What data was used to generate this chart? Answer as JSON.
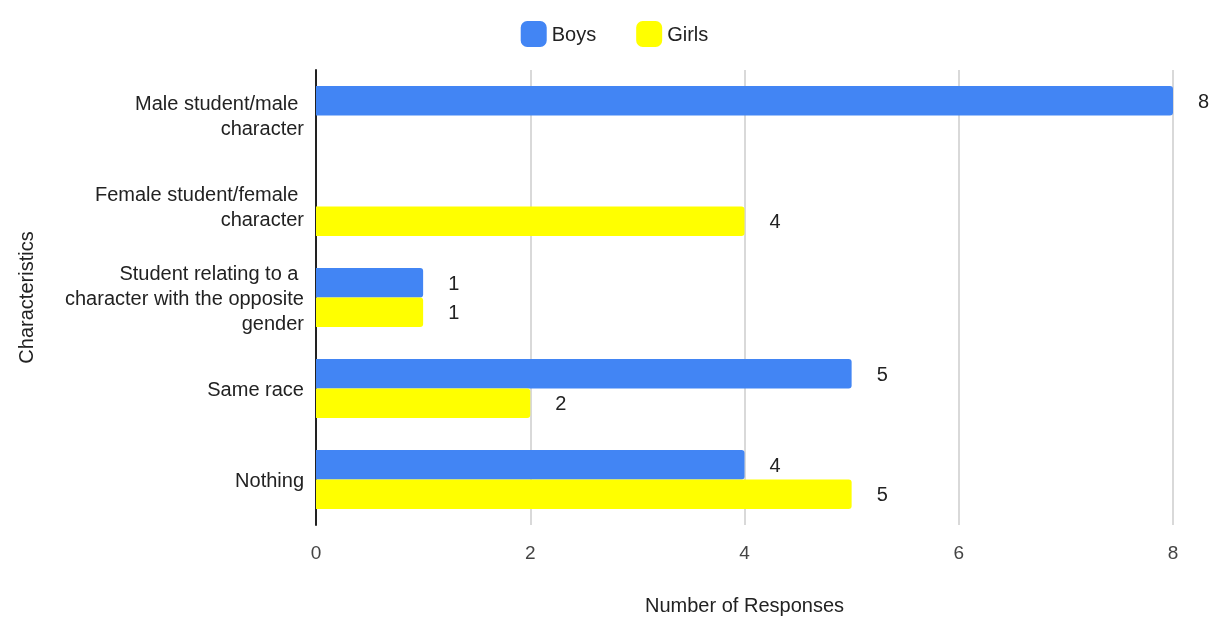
{
  "chart_data": {
    "type": "bar",
    "orientation": "horizontal",
    "xlabel": "Number of Responses",
    "ylabel": "Characteristics",
    "categories": [
      "Male student/male character",
      "Female student/female character",
      "Student relating to a character with the opposite gender",
      "Same race",
      "Nothing"
    ],
    "series": [
      {
        "name": "Boys",
        "color": "#4285f4",
        "values": [
          8,
          null,
          1,
          5,
          4
        ]
      },
      {
        "name": "Girls",
        "color": "#ffff00",
        "values": [
          null,
          4,
          1,
          2,
          5
        ]
      }
    ],
    "xlim": [
      0,
      8
    ],
    "xticks": [
      0,
      2,
      4,
      6,
      8
    ],
    "grid": "x",
    "legend": "top",
    "data_labels": true
  }
}
